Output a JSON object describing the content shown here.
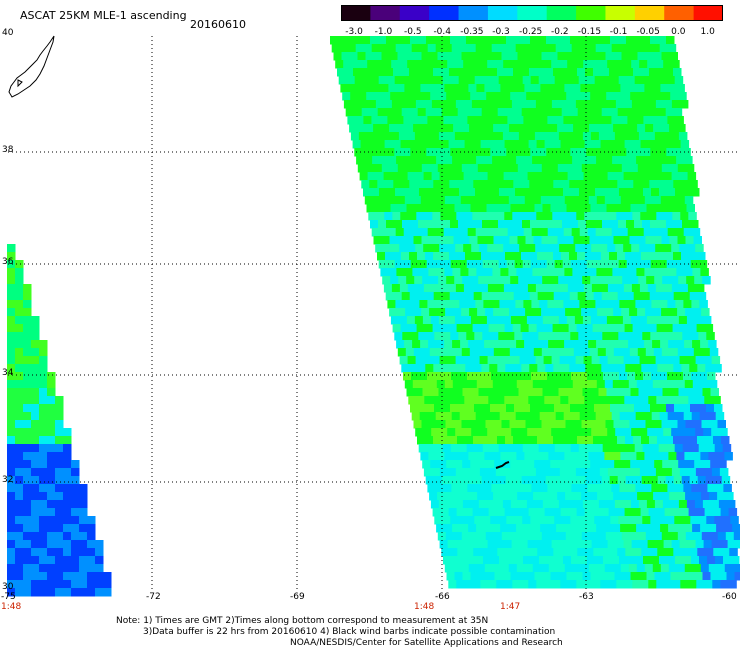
{
  "header": {
    "title": "ASCAT 25KM MLE-1 ascending",
    "date": "20160610"
  },
  "colorbar": {
    "labels": [
      "-3.0",
      "-1.0",
      "-0.5",
      "-0.4",
      "-0.35",
      "-0.3",
      "-0.25",
      "-0.2",
      "-0.15",
      "-0.1",
      "-0.05",
      "0.0",
      "1.0"
    ],
    "colors": [
      "#1a0010",
      "#4a007a",
      "#3a00c8",
      "#0030ff",
      "#0090ff",
      "#00dcff",
      "#00ffc8",
      "#00ff60",
      "#40ff00",
      "#c8ff00",
      "#ffd000",
      "#ff6000",
      "#ff1000"
    ]
  },
  "axes": {
    "y_ticks": [
      "40",
      "38",
      "36",
      "34",
      "32",
      "30"
    ],
    "x_ticks": [
      "-75",
      "-72",
      "-69",
      "-66",
      "-63",
      "-60"
    ]
  },
  "pass_times": [
    "1:48",
    "1:48",
    "1:47"
  ],
  "footer": {
    "line1": "Note: 1) Times are GMT 2)Times along bottom correspond to measurement at 35N",
    "line2": "3)Data buffer is 22 hrs from 20160610 4) Black wind barbs indicate possible contamination",
    "line3": "NOAA/NESDIS/Center for Satellite Applications and Research"
  },
  "palette": {
    "swath_cyan": "#00f0f0",
    "swath_green": "#10ff20",
    "swath_blue": "#0090ff",
    "swath_deep_blue": "#0040ff",
    "grid": "#000000",
    "time_label": "#cc2200"
  }
}
